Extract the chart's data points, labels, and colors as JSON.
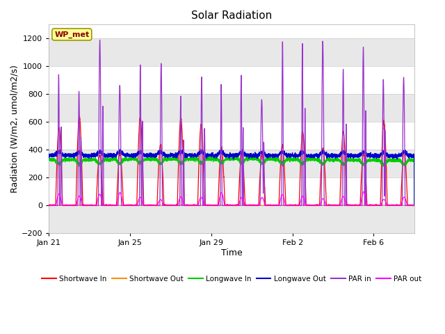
{
  "title": "Solar Radiation",
  "xlabel": "Time",
  "ylabel": "Radiation (W/m2, umol/m2/s)",
  "ylim": [
    -200,
    1300
  ],
  "yticks": [
    -200,
    0,
    200,
    400,
    600,
    800,
    1000,
    1200
  ],
  "xtick_positions": [
    0,
    4,
    8,
    12,
    16
  ],
  "xtick_labels": [
    "Jan 21",
    "Jan 25",
    "Jan 29",
    "Feb 2",
    "Feb 6"
  ],
  "label_box_text": "WP_met",
  "label_box_color": "#FFFF99",
  "label_box_edgecolor": "#999900",
  "series_colors": {
    "shortwave_in": "#FF0000",
    "shortwave_out": "#FF8C00",
    "longwave_in": "#00CC00",
    "longwave_out": "#0000CC",
    "par_in": "#9933CC",
    "par_out": "#FF00FF"
  },
  "legend_labels": [
    "Shortwave In",
    "Shortwave Out",
    "Longwave In",
    "Longwave Out",
    "PAR in",
    "PAR out"
  ],
  "background_color": "#FFFFFF",
  "plot_background": "#FFFFFF",
  "band_color": "#E8E8E8",
  "num_days": 18,
  "points_per_day": 288
}
